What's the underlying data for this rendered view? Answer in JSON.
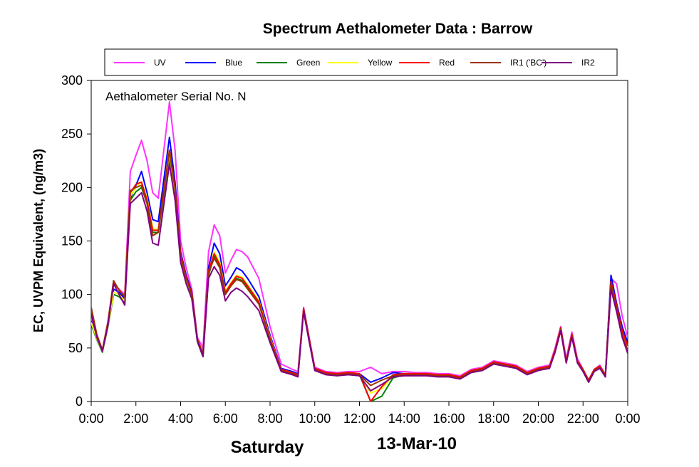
{
  "chart_data": {
    "type": "line",
    "title": "Spectrum Aethalometer Data  :  Barrow",
    "ylabel": "EC, UVPM Equivalent, (ng/m3)",
    "xlabel": "",
    "annotation": "Aethalometer  Serial No. N",
    "footer_day": "Saturday",
    "footer_date": "13-Mar-10",
    "xlim": [
      0,
      24
    ],
    "ylim": [
      0,
      300
    ],
    "x_ticks": [
      0,
      2,
      4,
      6,
      8,
      10,
      12,
      14,
      16,
      18,
      20,
      22,
      24
    ],
    "x_tick_labels": [
      "0:00",
      "2:00",
      "4:00",
      "6:00",
      "8:00",
      "10:00",
      "12:00",
      "14:00",
      "16:00",
      "18:00",
      "20:00",
      "22:00",
      "0:00"
    ],
    "y_ticks": [
      0,
      50,
      100,
      150,
      200,
      250,
      300
    ],
    "y_tick_labels": [
      "0",
      "50",
      "100",
      "150",
      "200",
      "250",
      "300"
    ],
    "grid": false,
    "legend_position": "top",
    "x": [
      0,
      0.25,
      0.5,
      0.75,
      1.0,
      1.25,
      1.5,
      1.75,
      2.0,
      2.25,
      2.5,
      2.75,
      3.0,
      3.5,
      3.75,
      4.0,
      4.25,
      4.5,
      4.75,
      5.0,
      5.25,
      5.5,
      5.75,
      6.0,
      6.25,
      6.5,
      6.75,
      7.0,
      7.5,
      8.0,
      8.5,
      9.0,
      9.25,
      9.5,
      9.75,
      10.0,
      10.5,
      11.0,
      11.5,
      12.0,
      12.5,
      13.0,
      13.5,
      14.0,
      14.5,
      15.0,
      15.5,
      16.0,
      16.5,
      17.0,
      17.5,
      18.0,
      18.5,
      19.0,
      19.5,
      20.0,
      20.5,
      20.75,
      21.0,
      21.25,
      21.5,
      21.75,
      22.0,
      22.25,
      22.5,
      22.75,
      23.0,
      23.25,
      23.5,
      23.75,
      24.0
    ],
    "series": [
      {
        "name": "UV",
        "color": "#ff33ff",
        "values": [
          78,
          62,
          48,
          75,
          110,
          105,
          100,
          215,
          230,
          244,
          225,
          195,
          190,
          280,
          235,
          150,
          125,
          105,
          60,
          50,
          140,
          165,
          155,
          120,
          132,
          142,
          140,
          135,
          115,
          70,
          35,
          30,
          28,
          88,
          60,
          32,
          28,
          27,
          28,
          28,
          32,
          26,
          28,
          28,
          27,
          27,
          26,
          26,
          24,
          30,
          32,
          38,
          36,
          34,
          28,
          32,
          34,
          50,
          70,
          40,
          65,
          40,
          30,
          20,
          30,
          34,
          25,
          115,
          110,
          80,
          60
        ]
      },
      {
        "name": "Blue",
        "color": "#0000ff",
        "values": [
          75,
          60,
          47,
          72,
          105,
          102,
          96,
          190,
          202,
          215,
          195,
          170,
          168,
          247,
          205,
          140,
          118,
          102,
          58,
          45,
          125,
          148,
          138,
          108,
          116,
          125,
          122,
          115,
          98,
          62,
          31,
          28,
          26,
          86,
          58,
          30,
          27,
          26,
          27,
          26,
          18,
          22,
          27,
          26,
          26,
          26,
          25,
          25,
          23,
          29,
          31,
          36,
          35,
          33,
          27,
          31,
          33,
          48,
          68,
          38,
          62,
          38,
          29,
          19,
          29,
          33,
          24,
          118,
          92,
          70,
          55
        ]
      },
      {
        "name": "Green",
        "color": "#008000",
        "values": [
          72,
          58,
          46,
          70,
          100,
          98,
          92,
          188,
          196,
          200,
          185,
          158,
          158,
          228,
          192,
          132,
          112,
          98,
          56,
          42,
          118,
          136,
          126,
          100,
          108,
          115,
          113,
          106,
          92,
          58,
          29,
          26,
          25,
          85,
          57,
          29,
          26,
          25,
          26,
          25,
          0,
          5,
          22,
          25,
          25,
          25,
          24,
          24,
          22,
          28,
          30,
          35,
          34,
          32,
          26,
          30,
          32,
          47,
          67,
          37,
          61,
          37,
          28,
          18,
          28,
          32,
          23,
          108,
          86,
          62,
          48
        ]
      },
      {
        "name": "Yellow",
        "color": "#ffff00",
        "values": [
          74,
          59,
          47,
          71,
          102,
          100,
          94,
          192,
          200,
          205,
          190,
          162,
          160,
          232,
          196,
          135,
          114,
          100,
          57,
          44,
          121,
          140,
          130,
          103,
          111,
          118,
          116,
          109,
          94,
          60,
          30,
          27,
          25,
          86,
          58,
          30,
          26,
          26,
          27,
          26,
          8,
          12,
          24,
          26,
          26,
          26,
          25,
          25,
          23,
          29,
          31,
          36,
          35,
          33,
          27,
          31,
          33,
          48,
          68,
          38,
          62,
          38,
          29,
          19,
          29,
          33,
          24,
          110,
          88,
          64,
          50
        ]
      },
      {
        "name": "Red",
        "color": "#ff0000",
        "values": [
          85,
          62,
          48,
          74,
          112,
          104,
          98,
          195,
          203,
          205,
          188,
          160,
          160,
          235,
          200,
          138,
          116,
          101,
          58,
          45,
          122,
          138,
          128,
          102,
          110,
          117,
          115,
          108,
          93,
          59,
          30,
          27,
          25,
          87,
          59,
          31,
          27,
          26,
          27,
          26,
          0,
          14,
          25,
          26,
          26,
          26,
          25,
          25,
          23,
          29,
          31,
          37,
          35,
          33,
          27,
          31,
          33,
          48,
          69,
          38,
          63,
          38,
          30,
          20,
          30,
          33,
          25,
          112,
          90,
          66,
          52
        ]
      },
      {
        "name": "IR1 ('BC')",
        "color": "#993300",
        "values": [
          88,
          63,
          48,
          74,
          113,
          104,
          98,
          197,
          200,
          202,
          185,
          155,
          158,
          234,
          198,
          136,
          115,
          100,
          58,
          44,
          120,
          134,
          125,
          100,
          108,
          114,
          112,
          105,
          91,
          58,
          29,
          26,
          24,
          86,
          58,
          30,
          26,
          25,
          26,
          25,
          15,
          20,
          24,
          25,
          25,
          25,
          24,
          24,
          22,
          28,
          30,
          36,
          34,
          32,
          26,
          30,
          32,
          47,
          68,
          37,
          62,
          37,
          29,
          19,
          29,
          32,
          24,
          110,
          88,
          62,
          48
        ]
      },
      {
        "name": "IR2",
        "color": "#800080",
        "values": [
          82,
          60,
          47,
          71,
          110,
          100,
          90,
          185,
          190,
          195,
          178,
          148,
          146,
          222,
          188,
          130,
          110,
          96,
          56,
          42,
          115,
          126,
          118,
          94,
          102,
          106,
          103,
          98,
          85,
          55,
          28,
          25,
          23,
          84,
          56,
          29,
          25,
          24,
          25,
          24,
          10,
          16,
          23,
          24,
          24,
          24,
          23,
          23,
          21,
          27,
          29,
          35,
          33,
          31,
          25,
          29,
          31,
          46,
          66,
          36,
          60,
          36,
          28,
          18,
          28,
          31,
          23,
          105,
          84,
          60,
          45
        ]
      }
    ]
  }
}
